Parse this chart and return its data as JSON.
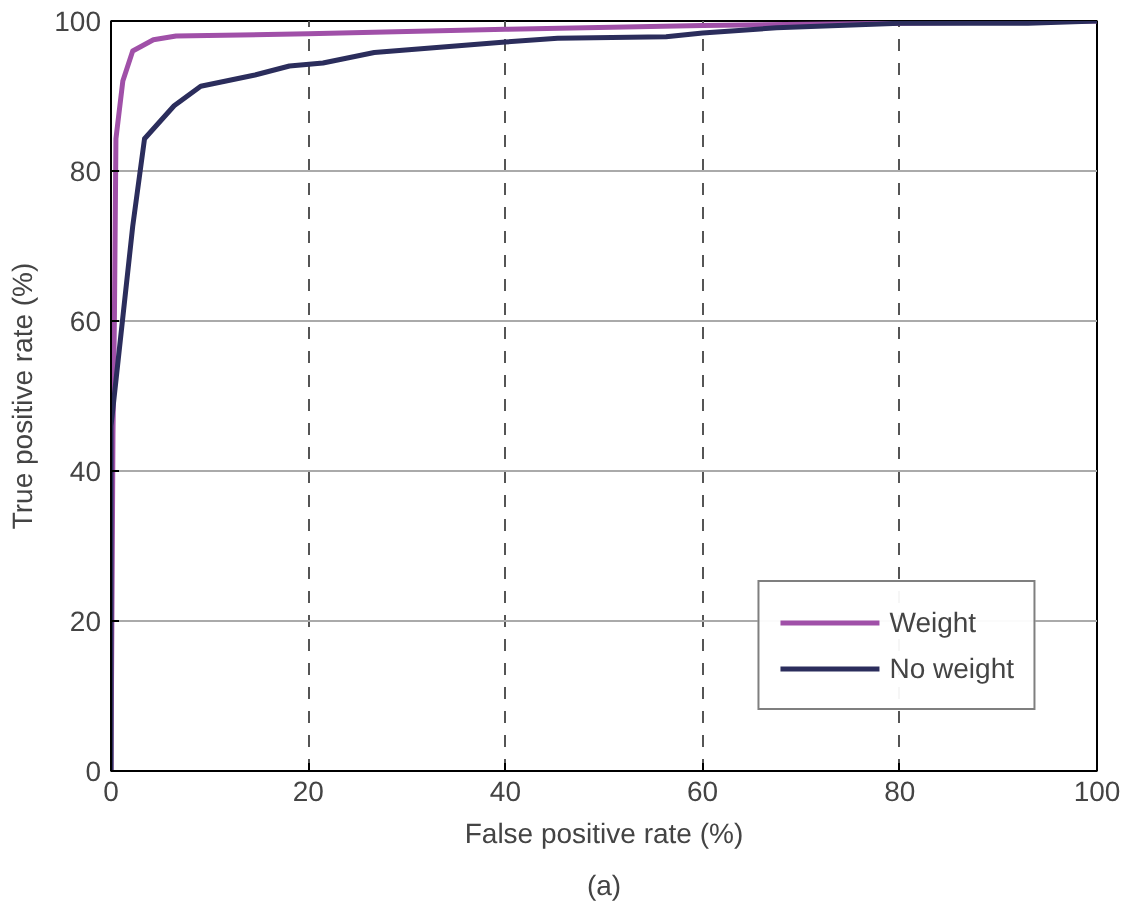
{
  "chart_data": {
    "type": "line",
    "xlabel": "False positive rate (%)",
    "ylabel": "True positive rate (%)",
    "xlim": [
      0,
      100
    ],
    "ylim": [
      0,
      100
    ],
    "xticks": [
      0,
      20,
      40,
      60,
      80,
      100
    ],
    "yticks": [
      0,
      20,
      40,
      60,
      80,
      100
    ],
    "grid": true,
    "legend": "bottom right",
    "line_style": "solid",
    "annotations": [
      "(a)"
    ],
    "series": [
      {
        "name": "Weight",
        "color": "#a050a8",
        "x": [
          0,
          0.2,
          0.35,
          0.5,
          1.2,
          2.2,
          4.3,
          6.6,
          20,
          40,
          60,
          80,
          100
        ],
        "values": [
          0,
          45,
          61,
          84.3,
          92,
          96,
          97.5,
          98,
          98.3,
          98.9,
          99.4,
          99.7,
          100
        ]
      },
      {
        "name": "No weight",
        "color": "#2b2d5c",
        "x": [
          0,
          0,
          2.2,
          3.4,
          6.4,
          9.1,
          14.6,
          18.1,
          21.5,
          26.7,
          40,
          45.3,
          56.3,
          60,
          67.5,
          80,
          93,
          100
        ],
        "values": [
          0,
          46,
          72.6,
          84.3,
          88.7,
          91.3,
          92.8,
          94,
          94.4,
          95.8,
          97.2,
          97.7,
          97.9,
          98.4,
          99.1,
          99.7,
          99.7,
          100
        ]
      }
    ]
  }
}
